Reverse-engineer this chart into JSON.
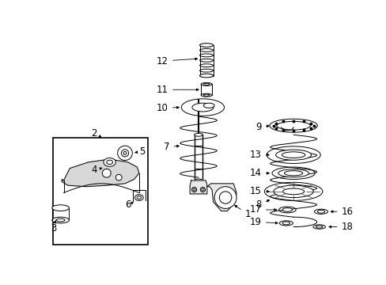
{
  "bg_color": "#ffffff",
  "line_color": "#000000",
  "fig_width": 4.89,
  "fig_height": 3.6,
  "dpi": 100,
  "label_fontsize": 8.5
}
